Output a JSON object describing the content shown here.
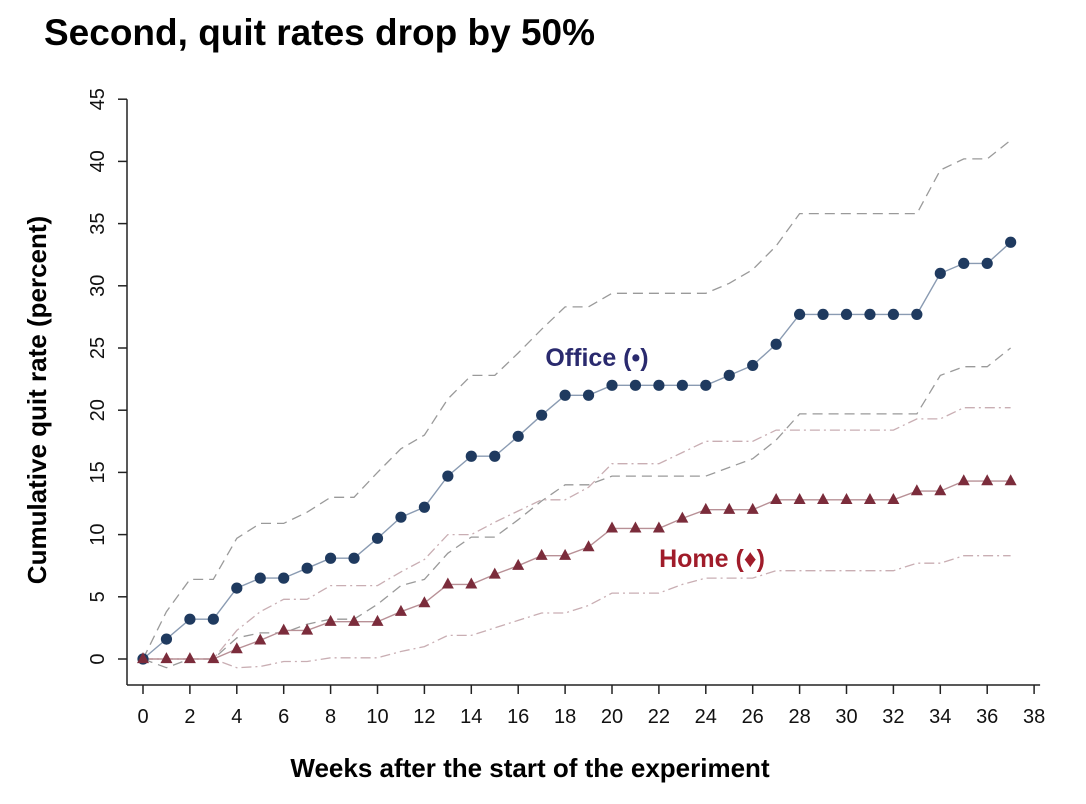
{
  "chart_data": {
    "type": "line",
    "title": "Second, quit rates drop by 50%",
    "xlabel": "Weeks after the start of the experiment",
    "ylabel": "Cumulative quit rate (percent)",
    "xlim": [
      0,
      38
    ],
    "ylim": [
      0,
      45
    ],
    "xticks": [
      0,
      2,
      4,
      6,
      8,
      10,
      12,
      14,
      16,
      18,
      20,
      22,
      24,
      26,
      28,
      30,
      32,
      34,
      36,
      38
    ],
    "yticks": [
      0,
      5,
      10,
      15,
      20,
      25,
      30,
      35,
      40,
      45
    ],
    "grid": false,
    "x": [
      0,
      1,
      2,
      3,
      4,
      5,
      6,
      7,
      8,
      9,
      10,
      11,
      12,
      13,
      14,
      15,
      16,
      17,
      18,
      19,
      20,
      21,
      22,
      23,
      24,
      25,
      26,
      27,
      28,
      29,
      30,
      31,
      32,
      33,
      34,
      35,
      36,
      37
    ],
    "series": [
      {
        "name": "Office (•)",
        "color": "#1f3a5f",
        "label_color": "#2a2a6e",
        "marker": "circle",
        "values": [
          0,
          1.6,
          3.2,
          3.2,
          5.7,
          6.5,
          6.5,
          7.3,
          8.1,
          8.1,
          9.7,
          11.4,
          12.2,
          14.7,
          16.3,
          16.3,
          17.9,
          19.6,
          21.2,
          21.2,
          22.0,
          22.0,
          22.0,
          22.0,
          22.0,
          22.8,
          23.6,
          25.3,
          27.7,
          27.7,
          27.7,
          27.7,
          27.7,
          27.7,
          31.0,
          31.8,
          31.8,
          33.5
        ],
        "ci_upper": [
          0,
          3.8,
          6.4,
          6.4,
          9.7,
          10.9,
          10.9,
          11.8,
          13.0,
          13.0,
          15.0,
          16.9,
          18.0,
          20.9,
          22.8,
          22.8,
          24.6,
          26.5,
          28.3,
          28.3,
          29.4,
          29.4,
          29.4,
          29.4,
          29.4,
          30.2,
          31.3,
          33.2,
          35.8,
          35.8,
          35.8,
          35.8,
          35.8,
          35.8,
          39.3,
          40.2,
          40.2,
          41.7
        ],
        "ci_lower": [
          0,
          -0.7,
          0,
          0,
          1.7,
          2.1,
          2.1,
          2.8,
          3.2,
          3.2,
          4.4,
          5.9,
          6.4,
          8.5,
          9.8,
          9.8,
          11.2,
          12.7,
          14.0,
          14.0,
          14.7,
          14.7,
          14.7,
          14.7,
          14.7,
          15.4,
          16.1,
          17.6,
          19.7,
          19.7,
          19.7,
          19.7,
          19.7,
          19.7,
          22.8,
          23.5,
          23.5,
          25.0
        ]
      },
      {
        "name": "Home (♦)",
        "color": "#7b2c3b",
        "label_color": "#a01c2a",
        "marker": "triangle",
        "values": [
          0,
          0,
          0,
          0,
          0.8,
          1.5,
          2.3,
          2.3,
          3.0,
          3.0,
          3.0,
          3.8,
          4.5,
          6.0,
          6.0,
          6.8,
          7.5,
          8.3,
          8.3,
          9.0,
          10.5,
          10.5,
          10.5,
          11.3,
          12.0,
          12.0,
          12.0,
          12.8,
          12.8,
          12.8,
          12.8,
          12.8,
          12.8,
          13.5,
          13.5,
          14.3,
          14.3,
          14.3
        ],
        "ci_upper": [
          0,
          0,
          0,
          0,
          2.3,
          3.8,
          4.8,
          4.8,
          5.9,
          5.9,
          5.9,
          7.0,
          8.0,
          10.0,
          10.0,
          11.0,
          11.9,
          12.8,
          12.8,
          13.8,
          15.7,
          15.7,
          15.7,
          16.6,
          17.5,
          17.5,
          17.5,
          18.4,
          18.4,
          18.4,
          18.4,
          18.4,
          18.4,
          19.3,
          19.3,
          20.2,
          20.2,
          20.2
        ],
        "ci_lower": [
          0,
          0,
          0,
          0,
          -0.7,
          -0.6,
          -0.2,
          -0.2,
          0.1,
          0.1,
          0.1,
          0.6,
          1.0,
          1.9,
          1.9,
          2.5,
          3.1,
          3.7,
          3.7,
          4.3,
          5.3,
          5.3,
          5.3,
          6.0,
          6.5,
          6.5,
          6.5,
          7.1,
          7.1,
          7.1,
          7.1,
          7.1,
          7.1,
          7.7,
          7.7,
          8.3,
          8.3,
          8.3
        ]
      }
    ]
  }
}
